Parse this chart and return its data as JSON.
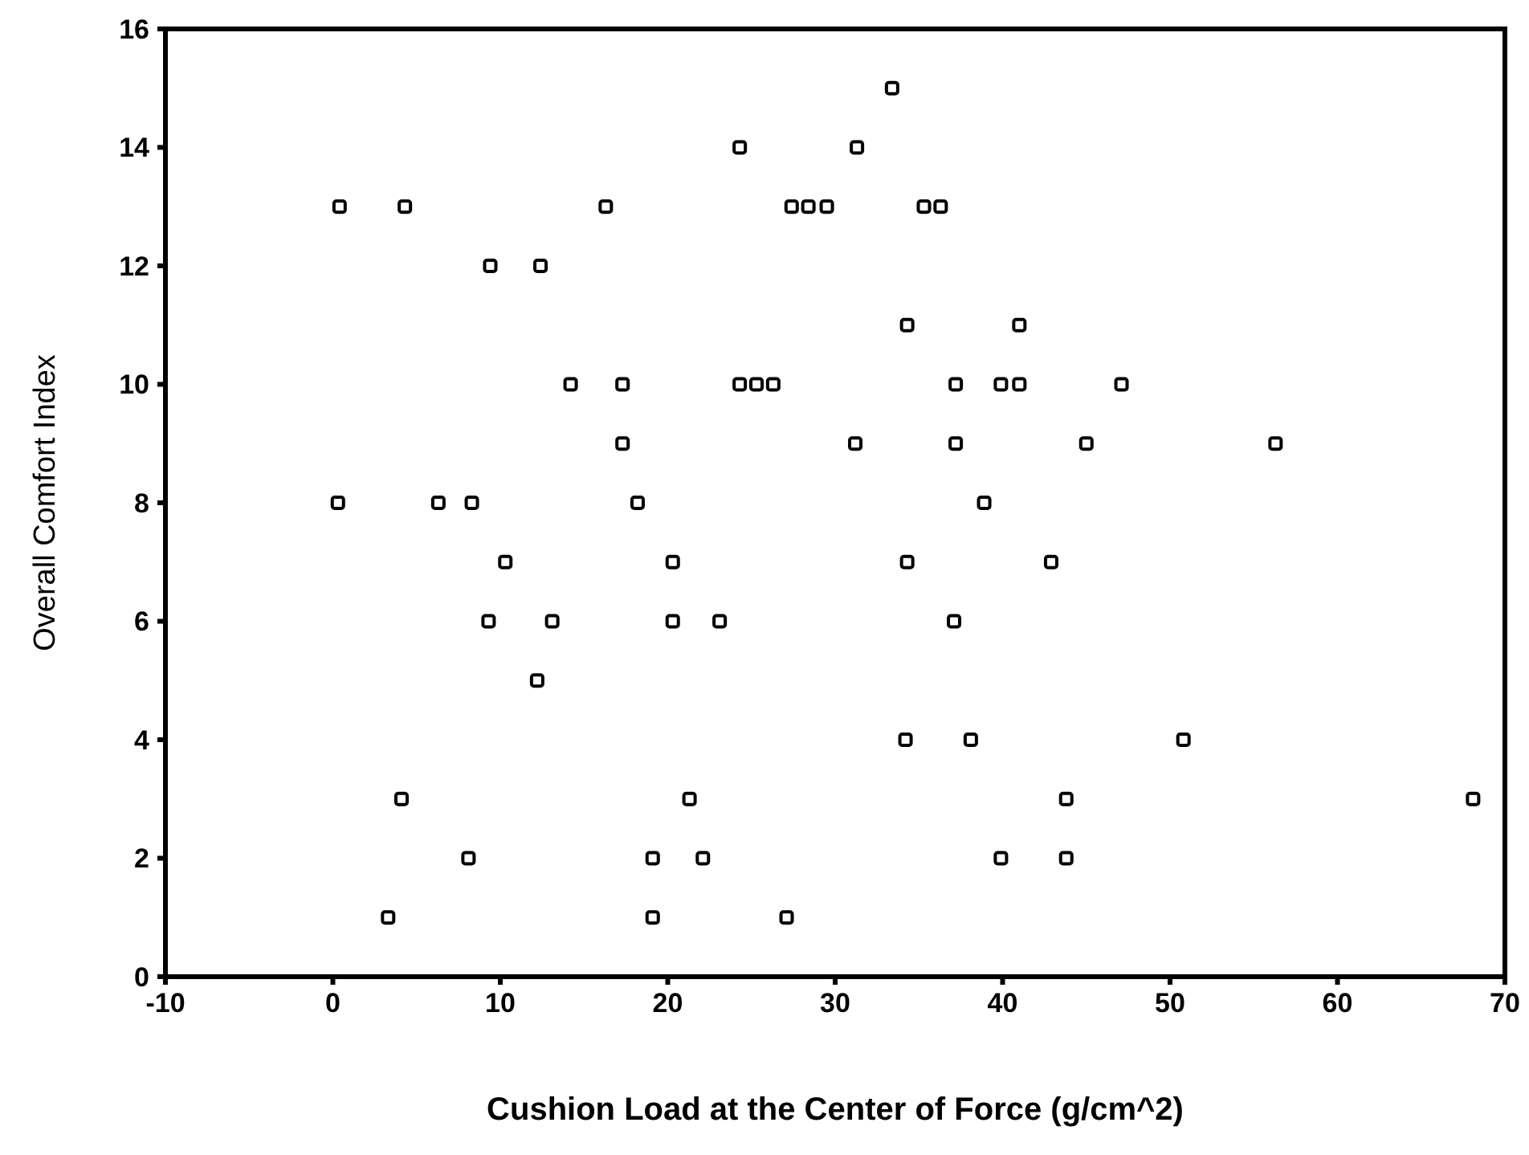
{
  "chart_data": {
    "type": "scatter",
    "xlabel": "Cushion Load at the Center of Force (g/cm^2)",
    "ylabel": "Overall Comfort Index",
    "xlim": [
      -10,
      70
    ],
    "xticks": [
      -10,
      0,
      10,
      20,
      30,
      40,
      50,
      60,
      70
    ],
    "ylim": [
      0,
      16
    ],
    "yticks": [
      0,
      2,
      4,
      6,
      8,
      10,
      12,
      14,
      16
    ],
    "grid": false,
    "marker": "square",
    "series": [
      {
        "color": "#000000",
        "x": [
          33.4,
          24.3,
          31.3,
          0.4,
          4.3,
          16.3,
          27.4,
          28.4,
          29.5,
          35.3,
          36.3,
          9.4,
          12.4,
          34.3,
          41.0,
          14.2,
          17.3,
          24.3,
          25.3,
          26.3,
          37.2,
          39.9,
          41.0,
          47.1,
          17.3,
          31.2,
          37.2,
          45.0,
          56.3,
          0.3,
          6.3,
          8.3,
          18.2,
          38.9,
          10.3,
          20.3,
          34.3,
          42.9,
          9.3,
          13.1,
          20.3,
          23.1,
          37.1,
          12.2,
          34.2,
          38.1,
          50.8,
          4.1,
          21.3,
          43.8,
          68.1,
          8.1,
          19.1,
          22.1,
          39.9,
          43.8,
          3.3,
          19.1,
          27.1
        ],
        "values": [
          15,
          14,
          14,
          13,
          13,
          13,
          13,
          13,
          13,
          13,
          13,
          12,
          12,
          11,
          11,
          10,
          10,
          10,
          10,
          10,
          10,
          10,
          10,
          10,
          9,
          9,
          9,
          9,
          9,
          8,
          8,
          8,
          8,
          8,
          7,
          7,
          7,
          7,
          6,
          6,
          6,
          6,
          6,
          5,
          4,
          4,
          4,
          3,
          3,
          3,
          3,
          2,
          2,
          2,
          2,
          2,
          1,
          1,
          1
        ]
      }
    ]
  }
}
